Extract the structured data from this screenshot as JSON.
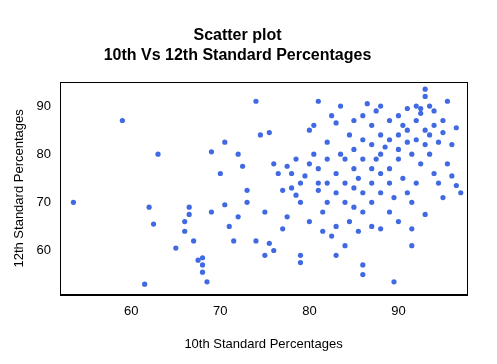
{
  "chart_data": {
    "type": "scatter",
    "title": [
      "Scatter plot",
      "10th Vs 12th Standard Percentages"
    ],
    "x_label": "10th Standard Percentages",
    "y_label": "12th Standard Percentages",
    "x": [
      53.5,
      59,
      61.5,
      62,
      62.5,
      63,
      65,
      66,
      66,
      66.5,
      66.5,
      67,
      67.5,
      68,
      68,
      68.5,
      68,
      69,
      69,
      70,
      70.5,
      70.5,
      71,
      71.5,
      72,
      72,
      72.5,
      73,
      73,
      74,
      74,
      74.5,
      75,
      75,
      75.5,
      75.5,
      76,
      76,
      76.5,
      77,
      77.5,
      77,
      77.5,
      78,
      78,
      78.5,
      78.5,
      79,
      79,
      79,
      79,
      79.5,
      80,
      80,
      80,
      80.5,
      80.5,
      81,
      81,
      81,
      81,
      81.5,
      81.5,
      82,
      82,
      82,
      82,
      82.5,
      82.5,
      83,
      83,
      83,
      83,
      83,
      83.5,
      83.5,
      84,
      84,
      84,
      84,
      84.5,
      84.5,
      85,
      85,
      85,
      85,
      85,
      85.5,
      85.5,
      86,
      86,
      86,
      86,
      86,
      86,
      86,
      86.5,
      87,
      87,
      87,
      87,
      87,
      87,
      87.5,
      87.5,
      88,
      88,
      88,
      88,
      88,
      88,
      88.5,
      89,
      89,
      89,
      89,
      89,
      89.5,
      89.5,
      90,
      90,
      90,
      90,
      90,
      90.5,
      90.5,
      91,
      91,
      91,
      91,
      91.5,
      91.5,
      91.5,
      91.5,
      92,
      92,
      92,
      92,
      92.5,
      92.5,
      92.5,
      93,
      93,
      93,
      93,
      93,
      93.5,
      93.5,
      93.5,
      94,
      94,
      94,
      94.5,
      94.5,
      95,
      95,
      95,
      95.5,
      95.5,
      96,
      96,
      96.5,
      96.5,
      97
    ],
    "values": [
      70,
      87,
      53,
      69,
      65.5,
      80,
      60.5,
      66,
      64,
      67.5,
      69,
      62,
      58,
      57,
      55.5,
      53.5,
      58.5,
      80.5,
      68,
      76,
      69.5,
      82.5,
      65,
      62,
      80,
      67,
      77.5,
      70,
      72.5,
      62,
      91,
      84,
      68,
      59,
      61.5,
      84.5,
      78,
      60,
      76,
      64.5,
      67,
      72.5,
      77.5,
      76,
      73,
      79,
      71.5,
      57.5,
      59,
      70,
      74,
      75.5,
      78,
      85,
      66,
      80,
      86,
      91,
      72.5,
      77,
      74,
      64,
      68,
      70,
      74,
      79,
      82.5,
      88,
      63,
      59,
      65,
      72,
      76,
      86.5,
      80,
      90,
      61,
      70,
      74,
      79,
      84,
      66,
      69,
      73,
      77,
      81,
      87,
      64,
      75,
      55,
      57,
      68,
      72,
      79,
      83,
      88,
      90.5,
      65,
      70,
      74,
      77,
      82,
      86,
      89,
      79,
      64.5,
      72,
      76,
      80,
      84,
      90,
      81.5,
      68,
      74,
      77,
      83,
      87,
      53.5,
      71,
      79,
      81,
      84,
      88,
      66,
      75,
      86,
      72,
      85,
      89.5,
      82.5,
      64.5,
      61,
      70,
      80,
      74,
      83,
      87,
      90,
      88.5,
      78,
      89.5,
      82,
      85,
      92,
      93.5,
      67.5,
      90,
      80,
      84,
      86,
      89,
      76,
      82.5,
      74,
      84.5,
      87,
      71,
      78,
      91,
      82,
      75.5,
      73.5,
      85.5,
      72
    ],
    "color": "#4169e1",
    "marker": "circle",
    "xlim": [
      52,
      97.7
    ],
    "ylim": [
      50.8,
      95
    ],
    "xticks": [
      60,
      70,
      80,
      90
    ],
    "yticks": [
      60,
      70,
      80,
      90
    ],
    "grid": false
  }
}
